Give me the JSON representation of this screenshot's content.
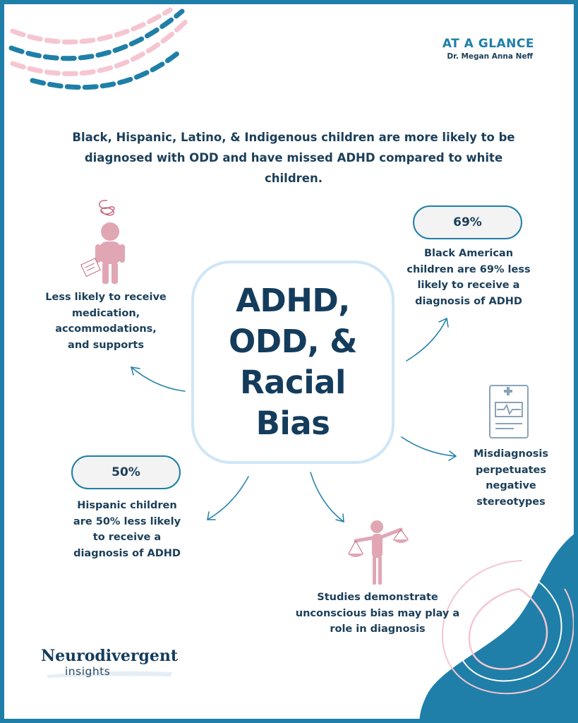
{
  "header": {
    "title": "AT A GLANCE",
    "author": "Dr. Megan Anna Neff"
  },
  "intro_text": "Black, Hispanic, Latino, & Indigenous children are more likely to be diagnosed with ODD and have missed ADHD compared to white children.",
  "center": {
    "title_lines": [
      "ADHD,",
      "ODD, &",
      "Racial",
      "Bias"
    ]
  },
  "points": {
    "supports": {
      "text": "Less likely to receive medication, accommodations, and supports",
      "icon": "stressed-person-icon"
    },
    "black_american": {
      "stat": "69%",
      "text": "Black American children are 69% less likely to receive a diagnosis of ADHD"
    },
    "misdiagnosis": {
      "text": "Misdiagnosis perpetuates negative stereotypes",
      "icon": "medical-chart-icon"
    },
    "hispanic": {
      "stat": "50%",
      "text": "Hispanic children are 50% less likely to receive a diagnosis of ADHD"
    },
    "bias": {
      "text": "Studies demonstrate unconscious bias may play a role in diagnosis",
      "icon": "scales-person-icon"
    }
  },
  "logo": {
    "name": "Neurodivergent",
    "sub": "insights"
  },
  "colors": {
    "navy": "#143c5c",
    "blue": "#1f7fa8",
    "pink": "#e0a6b4",
    "light_blue": "#cfe6f7",
    "light_pink": "#f5c6d2"
  }
}
